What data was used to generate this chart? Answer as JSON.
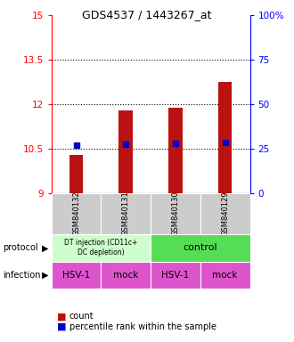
{
  "title": "GDS4537 / 1443267_at",
  "categories": [
    "GSM840132",
    "GSM840131",
    "GSM840130",
    "GSM840129"
  ],
  "bar_values": [
    10.3,
    11.78,
    11.88,
    12.75
  ],
  "bar_bottom": 9.0,
  "percentile_values": [
    10.62,
    10.65,
    10.68,
    10.72
  ],
  "bar_color": "#bb1111",
  "percentile_color": "#0000cc",
  "ylim_left": [
    9.0,
    15.0
  ],
  "yticks_left": [
    9,
    10.5,
    12,
    13.5,
    15
  ],
  "ytick_labels_left": [
    "9",
    "10.5",
    "12",
    "13.5",
    "15"
  ],
  "yticks_right": [
    0,
    25,
    50,
    75,
    100
  ],
  "ytick_labels_right": [
    "0",
    "25",
    "50",
    "75",
    "100%"
  ],
  "dotted_lines": [
    10.5,
    12.0,
    13.5
  ],
  "protocol_left_label": "DT injection (CD11c+\nDC depletion)",
  "protocol_right_label": "control",
  "protocol_left_color": "#ccffcc",
  "protocol_right_color": "#55dd55",
  "infection_labels": [
    "HSV-1",
    "mock",
    "HSV-1",
    "mock"
  ],
  "infection_color": "#dd55cc",
  "legend_count_color": "#bb1111",
  "legend_pct_color": "#0000cc"
}
